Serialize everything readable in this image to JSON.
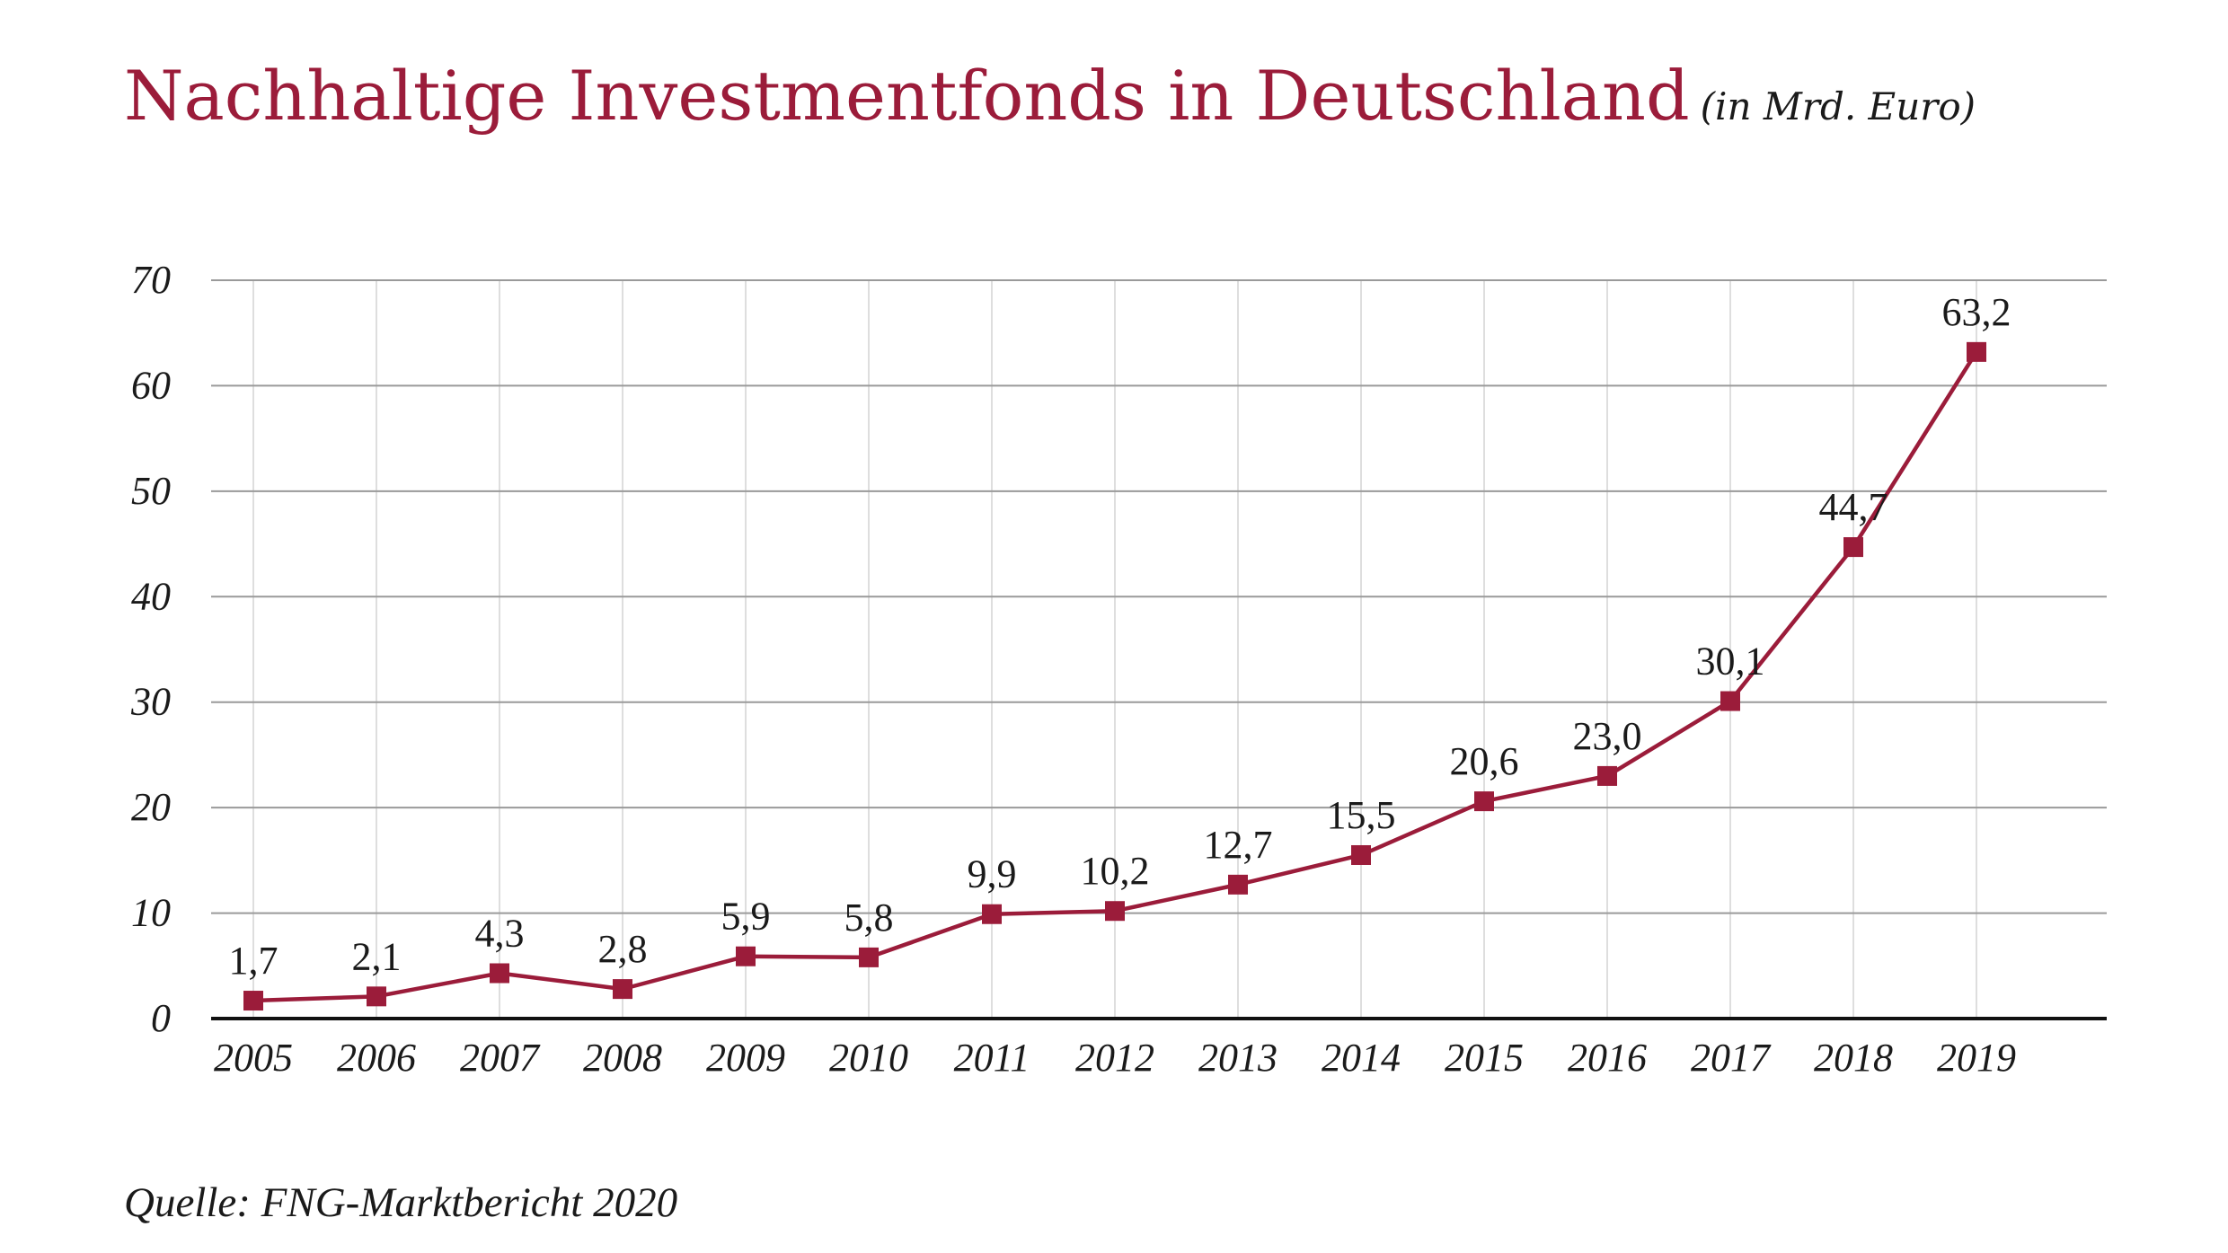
{
  "title": "Nachhaltige Investmentfonds in Deutschland",
  "subtitle": "(in Mrd. Euro)",
  "source": "Quelle: FNG-Marktbericht 2020",
  "colors": {
    "series": "#9b1c3a",
    "grid": "#9a9a9a",
    "vgrid": "#dedede",
    "axis": "#111111",
    "text": "#1a1a1a"
  },
  "chart_data": {
    "type": "line",
    "title": "Nachhaltige Investmentfonds in Deutschland",
    "subtitle": "(in Mrd. Euro)",
    "xlabel": "",
    "ylabel": "",
    "ylim": [
      0,
      70
    ],
    "yticks": [
      "0",
      "10",
      "20",
      "30",
      "40",
      "50",
      "60",
      "70"
    ],
    "grid": true,
    "legend": "none",
    "categories": [
      "2005",
      "2006",
      "2007",
      "2008",
      "2009",
      "2010",
      "2011",
      "2012",
      "2013",
      "2014",
      "2015",
      "2016",
      "2017",
      "2018",
      "2019"
    ],
    "series": [
      {
        "name": "Nachhaltige Investmentfonds",
        "values": [
          1.7,
          2.1,
          4.3,
          2.8,
          5.9,
          5.8,
          9.9,
          10.2,
          12.7,
          15.5,
          20.6,
          23.0,
          30.1,
          44.7,
          63.2
        ],
        "labels": [
          "1,7",
          "2,1",
          "4,3",
          "2,8",
          "5,9",
          "5,8",
          "9,9",
          "10,2",
          "12,7",
          "15,5",
          "20,6",
          "23,0",
          "30,1",
          "44,7",
          "63,2"
        ]
      }
    ]
  }
}
